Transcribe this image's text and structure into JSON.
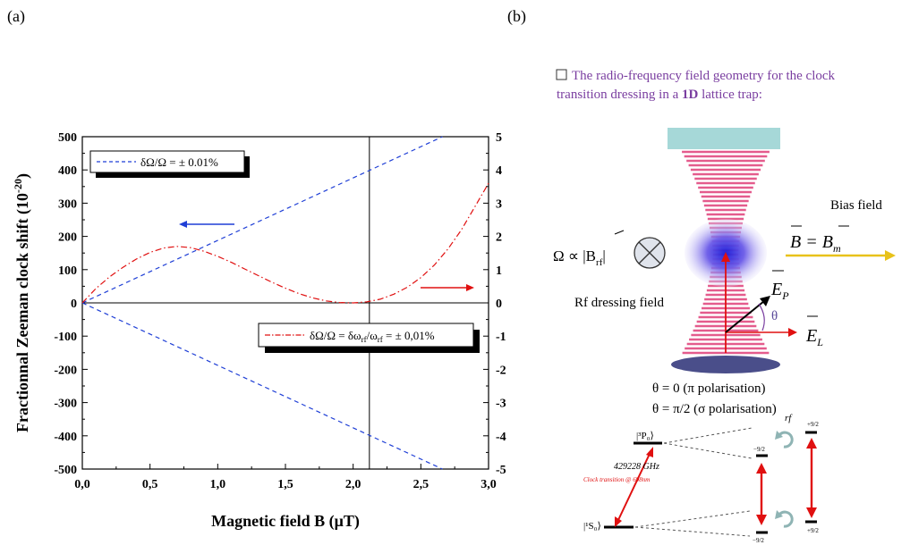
{
  "panel_labels": {
    "a": "(a)",
    "b": "(b)"
  },
  "chart_data": {
    "type": "line",
    "xlabel": "Magnetic field B (μT)",
    "ylabel": "Fractionnal Zeeman clock shift",
    "ylabel_unit": "(10",
    "ylabel_exp": "-20",
    "ylabel_close": ")",
    "xlim": [
      0,
      3
    ],
    "ylim_left": [
      -500,
      500
    ],
    "ylim_right": [
      -5,
      5
    ],
    "x_ticks": [
      0,
      0.5,
      1.0,
      1.5,
      2.0,
      2.5,
      3.0
    ],
    "x_tick_labels": [
      "0,0",
      "0,5",
      "1,0",
      "1,5",
      "2,0",
      "2,5",
      "3,0"
    ],
    "y_left_ticks": [
      -500,
      -400,
      -300,
      -200,
      -100,
      0,
      100,
      200,
      300,
      400,
      500
    ],
    "y_right_ticks": [
      -5,
      -4,
      -3,
      -2,
      -1,
      0,
      1,
      2,
      3,
      4,
      5
    ],
    "vertical_line_x": 2.12,
    "series": [
      {
        "name": "δΩ/Ω = ± 0.01%",
        "axis": "left",
        "color": "#1f3fd6",
        "style": "dashed",
        "x": [
          0,
          2.66
        ],
        "y": [
          0,
          500
        ]
      },
      {
        "name": "δΩ/Ω = ± 0.01%",
        "axis": "left",
        "color": "#1f3fd6",
        "style": "dashed",
        "x": [
          0,
          2.66
        ],
        "y": [
          0,
          -500
        ]
      },
      {
        "name": "δΩ/Ω = δω_rf/ω_rf = ± 0,01%",
        "axis": "right",
        "color": "#e01010",
        "style": "dashdot",
        "x": [
          0,
          0.1,
          0.2,
          0.3,
          0.4,
          0.5,
          0.6,
          0.7,
          0.8,
          0.9,
          1.0,
          1.1,
          1.2,
          1.3,
          1.4,
          1.5,
          1.6,
          1.7,
          1.8,
          1.9,
          2.0,
          2.1,
          2.2,
          2.3,
          2.4,
          2.5,
          2.6,
          2.7,
          2.8,
          2.9,
          3.0
        ],
        "y": [
          0,
          0.43,
          0.78,
          1.07,
          1.32,
          1.52,
          1.65,
          1.7,
          1.66,
          1.55,
          1.4,
          1.22,
          1.02,
          0.82,
          0.62,
          0.44,
          0.28,
          0.15,
          0.06,
          0.01,
          0.0,
          0.03,
          0.11,
          0.26,
          0.47,
          0.76,
          1.14,
          1.62,
          2.2,
          2.9,
          3.6
        ]
      }
    ],
    "legend_blue": "δΩ/Ω = ± 0.01%",
    "legend_red_main": "δΩ/Ω = δω",
    "legend_red_sub1": "rf",
    "legend_red_mid": "/ω",
    "legend_red_sub2": "rf",
    "legend_red_end": " = ± 0,01%"
  },
  "diagram": {
    "title_line1": "The radio-frequency field geometry for the clock",
    "title_line2_pre": "transition dressing in a ",
    "title_line2_bold": "1D",
    "title_line2_post": " lattice trap:",
    "bias_field": "Bias field",
    "omega_prop": "Ω ∝ |B",
    "omega_prop_sub": "rf",
    "rf_dressing": "Rf dressing field",
    "b_eq": "B = B",
    "b_eq_sub": "m",
    "e_p": "E",
    "e_p_sub": "P",
    "e_l": "E",
    "e_l_sub": "L",
    "theta": "θ",
    "pol_line1": "θ = 0  (π  polarisation)",
    "pol_line2": "θ = π/2 (σ  polarisation)",
    "rf_label": "rf",
    "upper_state": "|³P₀⟩",
    "lower_state": "|¹S₀⟩",
    "freq": "429228 GHz",
    "clock_transition": "Clock transition @ 698nm",
    "m_plus": "+9/2",
    "m_minus": "−9/2"
  }
}
